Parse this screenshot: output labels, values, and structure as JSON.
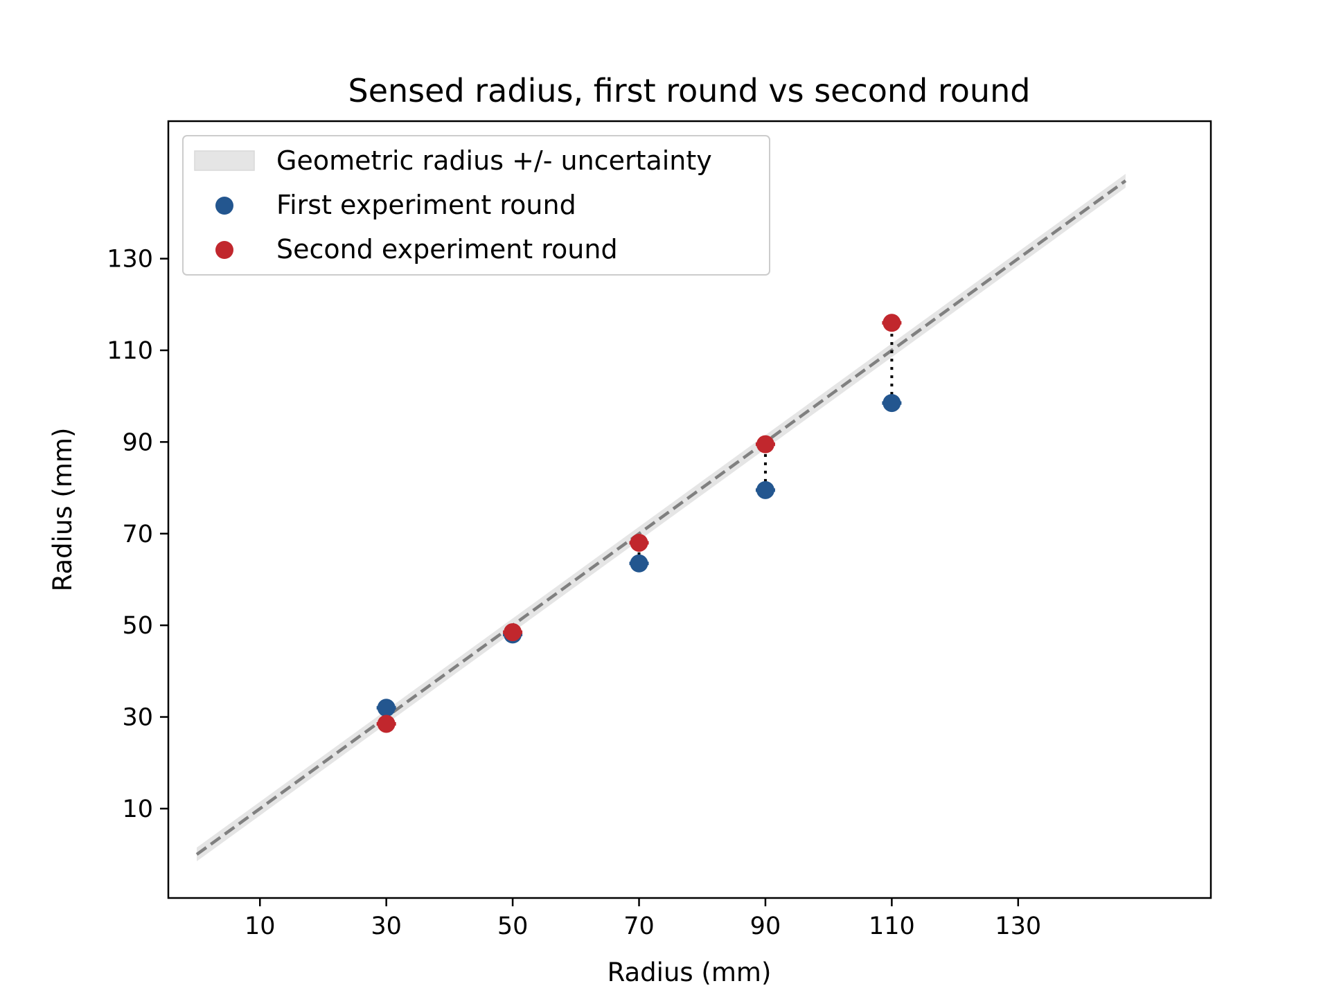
{
  "chart_data": {
    "type": "scatter",
    "title": "Sensed radius, first round vs second round",
    "xlabel": "Radius (mm)",
    "ylabel": "Radius (mm)",
    "xlim": [
      -4.5,
      160.5
    ],
    "ylim": [
      -9.5,
      160
    ],
    "xticks": [
      10,
      30,
      50,
      70,
      90,
      110,
      130
    ],
    "yticks": [
      10,
      30,
      50,
      70,
      90,
      110,
      130
    ],
    "grid": false,
    "legend_position": "top-left",
    "reference": {
      "name": "Geometric radius +/- uncertainty",
      "x": [
        0,
        147
      ],
      "y": [
        0,
        147
      ],
      "uncertainty": 1.5,
      "line_color": "#808080",
      "band_color": "#e5e5e5"
    },
    "series": [
      {
        "name": "First experiment round",
        "color": "#23568f",
        "x": [
          30,
          50,
          70,
          90,
          110
        ],
        "y": [
          32,
          48,
          63.5,
          79.5,
          98.5
        ]
      },
      {
        "name": "Second experiment round",
        "color": "#c1272d",
        "x": [
          30,
          50,
          70,
          90,
          110
        ],
        "y": [
          28.5,
          48.5,
          68,
          89.5,
          116
        ]
      }
    ]
  }
}
